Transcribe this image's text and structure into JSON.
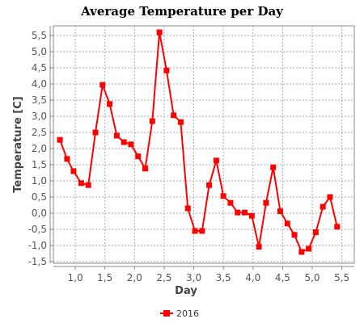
{
  "chart_data": {
    "type": "line",
    "title": "Average Temperature per Day",
    "xlabel": "Day",
    "ylabel": "Temperature [C]",
    "xlim": [
      0.63,
      5.71
    ],
    "ylim": [
      -1.55,
      5.8
    ],
    "x_ticks": [
      {
        "value": 1.0,
        "label": "1,0"
      },
      {
        "value": 1.5,
        "label": "1,5"
      },
      {
        "value": 2.0,
        "label": "2,0"
      },
      {
        "value": 2.5,
        "label": "2,5"
      },
      {
        "value": 3.0,
        "label": "3,0"
      },
      {
        "value": 3.5,
        "label": "3,5"
      },
      {
        "value": 4.0,
        "label": "4,0"
      },
      {
        "value": 4.5,
        "label": "4,5"
      },
      {
        "value": 5.0,
        "label": "5,0"
      },
      {
        "value": 5.5,
        "label": "5,5"
      }
    ],
    "y_ticks": [
      {
        "value": 5.5,
        "label": "5,5"
      },
      {
        "value": 5.0,
        "label": "5,0"
      },
      {
        "value": 4.5,
        "label": "4,5"
      },
      {
        "value": 4.0,
        "label": "4,0"
      },
      {
        "value": 3.5,
        "label": "3,5"
      },
      {
        "value": 3.0,
        "label": "3,0"
      },
      {
        "value": 2.5,
        "label": "2,5"
      },
      {
        "value": 2.0,
        "label": "2,0"
      },
      {
        "value": 1.5,
        "label": "1,5"
      },
      {
        "value": 1.0,
        "label": "1,0"
      },
      {
        "value": 0.5,
        "label": "0,5"
      },
      {
        "value": 0.0,
        "label": "0,0"
      },
      {
        "value": -0.5,
        "label": "-0,5"
      },
      {
        "value": -1.0,
        "label": "-1,0"
      },
      {
        "value": -1.5,
        "label": "-1,5"
      }
    ],
    "grid": true,
    "legend_position": "bottom-center",
    "series": [
      {
        "name": "2016",
        "color": "#ff0000",
        "marker": "square",
        "points": [
          {
            "x": 0.74,
            "y": 2.27
          },
          {
            "x": 0.86,
            "y": 1.68
          },
          {
            "x": 0.97,
            "y": 1.3
          },
          {
            "x": 1.1,
            "y": 0.93
          },
          {
            "x": 1.22,
            "y": 0.87
          },
          {
            "x": 1.34,
            "y": 2.5
          },
          {
            "x": 1.46,
            "y": 3.97
          },
          {
            "x": 1.58,
            "y": 3.38
          },
          {
            "x": 1.7,
            "y": 2.4
          },
          {
            "x": 1.82,
            "y": 2.2
          },
          {
            "x": 1.94,
            "y": 2.13
          },
          {
            "x": 2.06,
            "y": 1.76
          },
          {
            "x": 2.18,
            "y": 1.38
          },
          {
            "x": 2.3,
            "y": 2.85
          },
          {
            "x": 2.42,
            "y": 5.6
          },
          {
            "x": 2.54,
            "y": 4.42
          },
          {
            "x": 2.66,
            "y": 3.03
          },
          {
            "x": 2.78,
            "y": 2.82
          },
          {
            "x": 2.9,
            "y": 0.15
          },
          {
            "x": 3.02,
            "y": -0.55
          },
          {
            "x": 3.14,
            "y": -0.55
          },
          {
            "x": 3.26,
            "y": 0.87
          },
          {
            "x": 3.38,
            "y": 1.63
          },
          {
            "x": 3.5,
            "y": 0.53
          },
          {
            "x": 3.62,
            "y": 0.32
          },
          {
            "x": 3.74,
            "y": 0.02
          },
          {
            "x": 3.86,
            "y": 0.02
          },
          {
            "x": 3.98,
            "y": -0.08
          },
          {
            "x": 4.1,
            "y": -1.04
          },
          {
            "x": 4.22,
            "y": 0.32
          },
          {
            "x": 4.34,
            "y": 1.42
          },
          {
            "x": 4.46,
            "y": 0.06
          },
          {
            "x": 4.58,
            "y": -0.32
          },
          {
            "x": 4.7,
            "y": -0.67
          },
          {
            "x": 4.82,
            "y": -1.2
          },
          {
            "x": 4.94,
            "y": -1.1
          },
          {
            "x": 5.06,
            "y": -0.59
          },
          {
            "x": 5.18,
            "y": 0.2
          },
          {
            "x": 5.3,
            "y": 0.5
          },
          {
            "x": 5.42,
            "y": -0.42
          }
        ]
      }
    ]
  },
  "legend": {
    "label": "2016",
    "color": "#ff0000"
  },
  "colors": {
    "background": "#ffffff",
    "grid": "#aaaaaa",
    "axis": "#888888"
  }
}
